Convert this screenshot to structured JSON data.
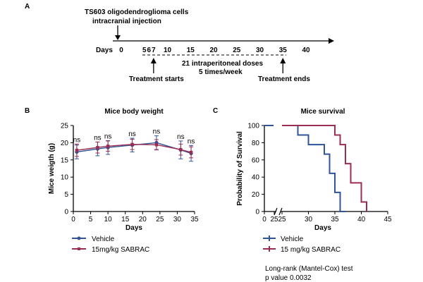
{
  "panel_a": {
    "label": "A",
    "injection_line1": "TS603 oligodendroglioma cells",
    "injection_line2": "intracranial injection",
    "days_label": "Days",
    "ticks": [
      "0",
      "5",
      "6",
      "7",
      "10",
      "15",
      "20",
      "25",
      "30",
      "35",
      "40"
    ],
    "tick_days": [
      0,
      5,
      6,
      7,
      10,
      15,
      20,
      25,
      30,
      35,
      40
    ],
    "dose_line1": "21 intraperitoneal doses",
    "dose_line2": "5 times/week",
    "treatment_start_day": 7,
    "treatment_end_day": 35,
    "treatment_starts": "Treatment starts",
    "treatment_ends": "Treatment ends"
  },
  "legend_b": {
    "vehicle": "Vehicle",
    "sabrac": "15mg/kg SABRAC"
  },
  "legend_c": {
    "vehicle": "Vehicle",
    "sabrac": "15 mg/kg SABRAC"
  },
  "stats": {
    "test": "Long-rank (Mantel-Cox) test",
    "pvalue": "p value 0.0032"
  },
  "colors": {
    "vehicle": "#2f5597",
    "sabrac": "#9b2c52",
    "axis": "#000000"
  },
  "chart_data": [
    {
      "id": "body-weight",
      "panel": "B",
      "type": "line",
      "title": "Mice body weight",
      "xlabel": "Days",
      "ylabel": "Mice weigth (g)",
      "xlim": [
        0,
        35
      ],
      "ylim": [
        0,
        25
      ],
      "xticks": [
        "0",
        "5",
        "10",
        "15",
        "20",
        "25",
        "30",
        "35"
      ],
      "yticks": [
        "0",
        "5",
        "10",
        "15",
        "20",
        "25"
      ],
      "x": [
        1,
        7,
        10,
        17,
        24,
        31,
        34
      ],
      "annotations": [
        "ns",
        "ns",
        "ns",
        "ns",
        "ns",
        "ns",
        "ns"
      ],
      "series": [
        {
          "name": "Vehicle",
          "color": "#2f5597",
          "values": [
            17.3,
            18.2,
            18.6,
            19.3,
            20.0,
            17.9,
            16.9
          ],
          "errors": [
            2.0,
            2.0,
            2.0,
            2.0,
            2.0,
            2.6,
            2.3
          ]
        },
        {
          "name": "15mg/kg SABRAC",
          "color": "#9b2c52",
          "values": [
            17.8,
            18.6,
            19.0,
            19.5,
            19.4,
            18.0,
            17.2
          ],
          "errors": [
            1.8,
            1.6,
            1.5,
            1.5,
            1.5,
            1.6,
            1.6
          ]
        }
      ]
    },
    {
      "id": "survival",
      "panel": "C",
      "type": "line",
      "title": "Mice survival",
      "xlabel": "Days",
      "ylabel": "Probability of Survival",
      "xlim": [
        25,
        45
      ],
      "ylim": [
        0,
        100
      ],
      "xticks": [
        "0",
        "25",
        "25",
        "30",
        "35",
        "40",
        "45"
      ],
      "yticks": [
        "0",
        "20",
        "40",
        "60",
        "80",
        "100"
      ],
      "axis_break": true,
      "series": [
        {
          "name": "Vehicle",
          "color": "#2f5597",
          "x": [
            28,
            30,
            33,
            34,
            35,
            36,
            37
          ],
          "values": [
            88.9,
            77.8,
            66.7,
            44.4,
            22.2,
            0,
            0
          ]
        },
        {
          "name": "15 mg/kg SABRAC",
          "color": "#9b2c52",
          "x": [
            35,
            36,
            37,
            38,
            40,
            41
          ],
          "values": [
            88.9,
            77.8,
            55.6,
            33.3,
            11.1,
            0
          ]
        }
      ]
    }
  ]
}
